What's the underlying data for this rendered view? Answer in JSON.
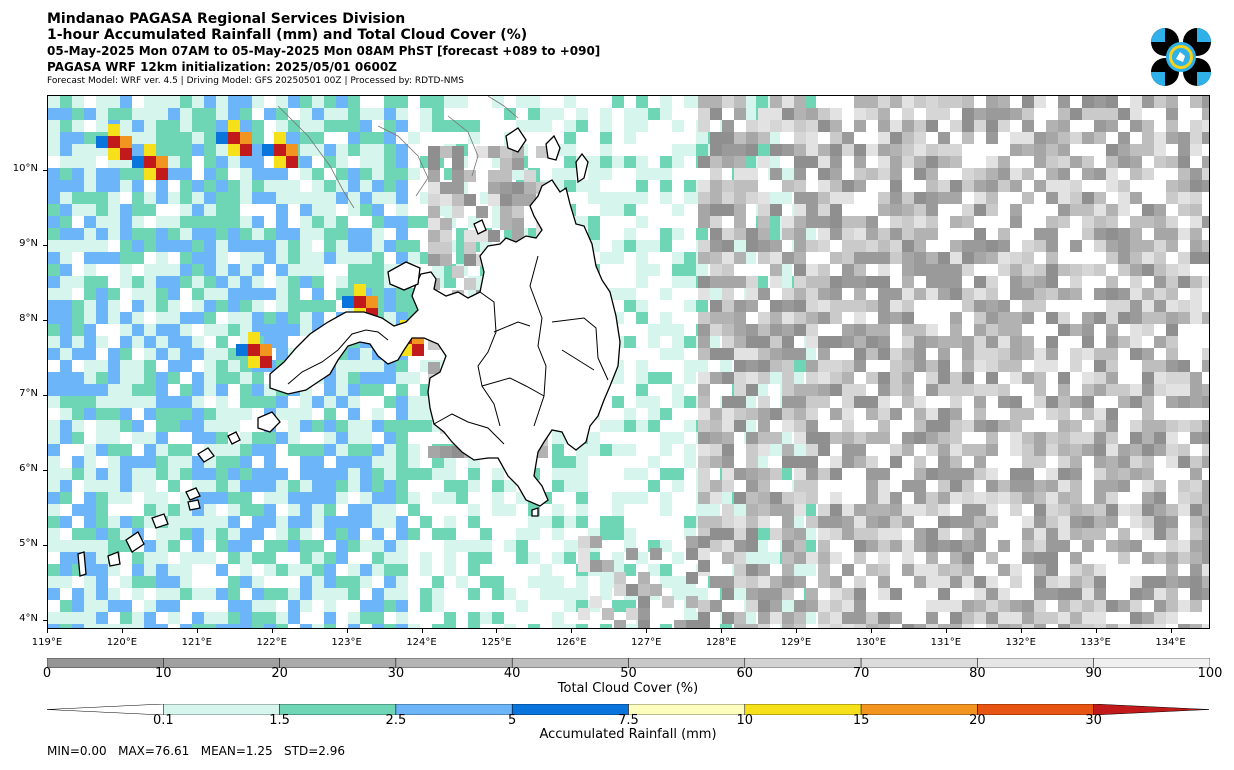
{
  "header": {
    "line1": "Mindanao PAGASA Regional Services Division",
    "line2": "1-hour Accumulated Rainfall (mm) and Total Cloud Cover (%)",
    "line3": "05-May-2025 Mon 07AM to 05-May-2025 Mon 08AM PhST [forecast +089 to +090]",
    "line4": "PAGASA WRF 12km initialization: 2025/05/01 0600Z",
    "line5": "Forecast Model: WRF ver. 4.5 | Driving Model: GFS 20250501 00Z | Processed by: RDTD-NMS"
  },
  "map": {
    "lat_labels": [
      "10°N",
      "9°N",
      "8°N",
      "7°N",
      "6°N",
      "5°N",
      "4°N"
    ],
    "lon_labels": [
      "119°E",
      "120°E",
      "121°E",
      "122°E",
      "123°E",
      "124°E",
      "125°E",
      "126°E",
      "127°E",
      "128°E",
      "129°E",
      "130°E",
      "131°E",
      "132°E",
      "133°E",
      "134°E"
    ],
    "lon_range": [
      119,
      134.5
    ],
    "lat_range": [
      3.9,
      11.0
    ]
  },
  "cloud_legend": {
    "title": "Total Cloud Cover (%)",
    "ticks": [
      "0",
      "10",
      "20",
      "30",
      "40",
      "50",
      "60",
      "70",
      "80",
      "90",
      "100"
    ],
    "colors": [
      "#969696",
      "#a0a0a0",
      "#aaaaaa",
      "#b4b4b4",
      "#bebebe",
      "#c8c8c8",
      "#d2d2d2",
      "#dcdcdc",
      "#e6e6e6",
      "#f0f0f0"
    ]
  },
  "rain_legend": {
    "title": "Accumulated Rainfall (mm)",
    "ticks": [
      "0.1",
      "1.5",
      "2.5",
      "5",
      "7.5",
      "10",
      "15",
      "20",
      "30"
    ],
    "colors": [
      "#ffffff",
      "#d6f5ec",
      "#6fd6b5",
      "#6cb5f9",
      "#0874dc",
      "#fdfdbd",
      "#f5e01a",
      "#f29420",
      "#e85411",
      "#c21a1a"
    ]
  },
  "stats": {
    "text": "MIN=0.00   MAX=76.61   MEAN=1.25   STD=2.96"
  },
  "colors": {
    "cloud_dark": "#8f8f8f",
    "cloud_mid": "#b5b5b5",
    "cloud_light": "#d5d5d5",
    "rain_light": "#d6f5ec",
    "rain_teal": "#6fd6b5",
    "rain_blue": "#6cb5f9",
    "rain_dblue": "#0874dc",
    "rain_yellow": "#f5e01a",
    "rain_orange": "#f29420",
    "rain_red": "#c21a1a",
    "land": "#ffffff",
    "coast": "#000000"
  },
  "logo_icon": "pagasa-logo-icon"
}
